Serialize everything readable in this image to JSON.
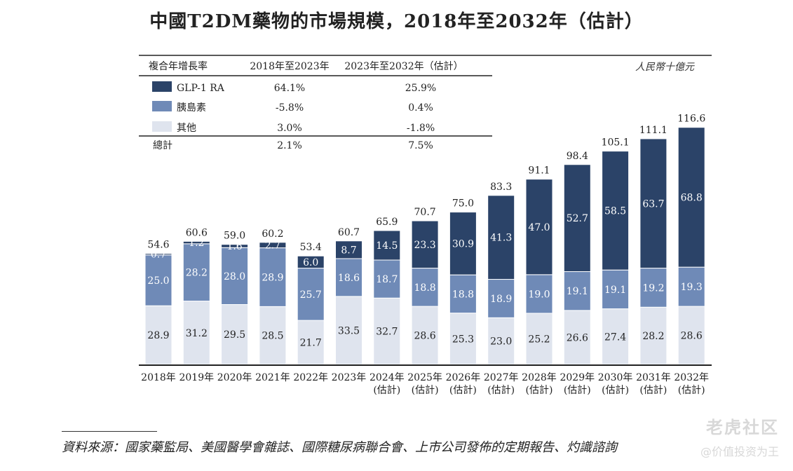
{
  "chart_data": {
    "type": "bar",
    "stacked": true,
    "title": "中國T2DM藥物的市場規模，2018年至2032年（估計）",
    "unit": "人民幣十億元",
    "categories": [
      [
        "2018年",
        ""
      ],
      [
        "2019年",
        ""
      ],
      [
        "2020年",
        ""
      ],
      [
        "2021年",
        ""
      ],
      [
        "2022年",
        ""
      ],
      [
        "2023年",
        ""
      ],
      [
        "2024年",
        "(估計)"
      ],
      [
        "2025年",
        "(估計)"
      ],
      [
        "2026年",
        "(估計)"
      ],
      [
        "2027年",
        "(估計)"
      ],
      [
        "2028年",
        "(估計)"
      ],
      [
        "2029年",
        "(估計)"
      ],
      [
        "2030年",
        "(估計)"
      ],
      [
        "2031年",
        "(估計)"
      ],
      [
        "2032年",
        "(估計)"
      ]
    ],
    "series": [
      {
        "name": "其他",
        "color": "#dfe4ee",
        "label_color": "#222222",
        "values": [
          28.9,
          31.2,
          29.5,
          28.5,
          21.7,
          33.5,
          32.7,
          28.6,
          25.3,
          23.0,
          25.2,
          26.6,
          27.4,
          28.2,
          28.6
        ]
      },
      {
        "name": "胰島素",
        "color": "#6f8ab7",
        "label_color": "#ffffff",
        "values": [
          25.0,
          28.2,
          28.0,
          28.9,
          25.7,
          18.6,
          18.7,
          18.8,
          18.8,
          18.9,
          19.0,
          19.1,
          19.1,
          19.2,
          19.3
        ]
      },
      {
        "name": "GLP-1 RA",
        "color": "#2b4368",
        "label_color": "#ffffff",
        "values": [
          0.7,
          1.2,
          1.6,
          2.7,
          6.0,
          8.7,
          14.5,
          23.3,
          30.9,
          41.3,
          47.0,
          52.7,
          58.5,
          63.7,
          68.8
        ]
      }
    ],
    "totals": [
      54.6,
      60.6,
      59.0,
      60.2,
      53.4,
      60.7,
      65.9,
      70.7,
      75.0,
      83.3,
      91.1,
      98.4,
      105.1,
      111.1,
      116.6
    ],
    "ylim": [
      0,
      125
    ],
    "legend_table": {
      "headers": [
        "複合年增長率",
        "2018年至2023年",
        "2023年至2032年（估計）"
      ],
      "rows": [
        {
          "label": "GLP-1 RA",
          "color": "#2b4368",
          "c1": "64.1%",
          "c2": "25.9%"
        },
        {
          "label": "胰島素",
          "color": "#6f8ab7",
          "c1": "-5.8%",
          "c2": "0.4%"
        },
        {
          "label": "其他",
          "color": "#dfe4ee",
          "c1": "3.0%",
          "c2": "-1.8%"
        },
        {
          "label": "總計",
          "color": "",
          "c1": "2.1%",
          "c2": "7.5%"
        }
      ]
    }
  },
  "source": {
    "text": "資料來源：國家藥監局、美國醫學會雜誌、國際糖尿病聯合會、上市公司發佈的定期報告、灼識諮詢"
  },
  "watermark": {
    "logo": "老虎社区",
    "sub": "@价值投资为王"
  }
}
